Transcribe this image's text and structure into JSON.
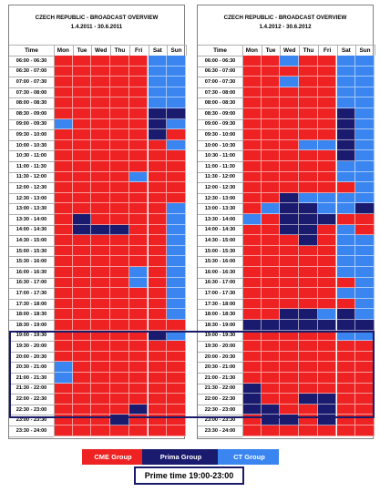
{
  "colors": {
    "cme": "#ee2222",
    "prima": "#1a1a6e",
    "ct": "#3a85f0"
  },
  "panels": [
    {
      "title": "CZECH REPUBLIC - BROADCAST OVERVIEW",
      "subtitle": "1.4.2011 - 30.6.2011"
    },
    {
      "title": "CZECH REPUBLIC - BROADCAST OVERVIEW",
      "subtitle": "1.4.2012 - 30.6.2012"
    }
  ],
  "legend": [
    {
      "label": "CME Group",
      "group": "cme"
    },
    {
      "label": "Prima Group",
      "group": "prima"
    },
    {
      "label": "CT Group",
      "group": "ct"
    }
  ],
  "prime_time_label": "Prime time 19:00-23:00",
  "chart_data": [
    {
      "type": "heatmap",
      "title": "CZECH REPUBLIC - BROADCAST OVERVIEW",
      "subtitle": "1.4.2011 - 30.6.2011",
      "legend": [
        "CME Group",
        "Prima Group",
        "CT Group"
      ],
      "encoding": {
        "C": "CME Group",
        "P": "Prima Group",
        "T": "CT Group"
      },
      "x_header": "Time",
      "days": [
        "Mon",
        "Tue",
        "Wed",
        "Thu",
        "Fri",
        "Sat",
        "Sun"
      ],
      "time_slots": [
        "06:00 - 06:30",
        "06:30 - 07:00",
        "07:00 - 07:30",
        "07:30 - 08:00",
        "08:00 - 08:30",
        "08:30 - 09:00",
        "09:00 - 09:30",
        "09:30 - 10:00",
        "10:00 - 10:30",
        "10:30 - 11:00",
        "11:00 - 11:30",
        "11:30 - 12:00",
        "12:00 - 12:30",
        "12:30 - 13:00",
        "13:00 - 13:30",
        "13:30 - 14:00",
        "14:00 - 14:30",
        "14:30 - 15:00",
        "15:00 - 15:30",
        "15:30 - 16:00",
        "16:00 - 16:30",
        "16:30 - 17:00",
        "17:00 - 17:30",
        "17:30 - 18:00",
        "18:00 - 18:30",
        "18:30 - 19:00",
        "19:00 - 19:30",
        "19:30 - 20:00",
        "20:00 - 20:30",
        "20:30 - 21:00",
        "21:00 - 21:30",
        "21:30 - 22:00",
        "22:00 - 22:30",
        "22:30 - 23:00",
        "23:00 - 23:30",
        "23:30 - 24:00"
      ],
      "rows": [
        "CCCCCTT",
        "CCCCCTT",
        "CCCCCTT",
        "CCCCCTT",
        "CCCCCTT",
        "CCCCCPP",
        "TCCCCPT",
        "CCCCCPC",
        "CCCCCCT",
        "CCCCCCC",
        "CCCCCCC",
        "CCCCTCC",
        "CCCCCCC",
        "CCCCCCC",
        "CCCCCCT",
        "CPCCCCT",
        "CPPPCCT",
        "CCCCCCT",
        "CCCCCCT",
        "CCCCCCT",
        "CCCCTCT",
        "CCCCTCT",
        "CCCCCCT",
        "CCCCCCT",
        "CCCCCCT",
        "CCCCCCC",
        "CCCCCPT",
        "CCCCCCC",
        "CCCCCCC",
        "TCCCCCC",
        "TCCCCCC",
        "CCCCCCC",
        "CCCCCCC",
        "CCCCPCC",
        "CCCPCCC",
        "CCCCCCC"
      ]
    },
    {
      "type": "heatmap",
      "title": "CZECH REPUBLIC - BROADCAST OVERVIEW",
      "subtitle": "1.4.2012 - 30.6.2012",
      "legend": [
        "CME Group",
        "Prima Group",
        "CT Group"
      ],
      "encoding": {
        "C": "CME Group",
        "P": "Prima Group",
        "T": "CT Group"
      },
      "x_header": "Time",
      "days": [
        "Mon",
        "Tue",
        "Wed",
        "Thu",
        "Fri",
        "Sat",
        "Sun"
      ],
      "time_slots": [
        "06:00 - 06:30",
        "06:30 - 07:00",
        "07:00 - 07:30",
        "07:30 - 08:00",
        "08:00 - 08:30",
        "08:30 - 09:00",
        "09:00 - 09:30",
        "09:30 - 10:00",
        "10:00 - 10:30",
        "10:30 - 11:00",
        "11:00 - 11:30",
        "11:30 - 12:00",
        "12:00 - 12:30",
        "12:30 - 13:00",
        "13:00 - 13:30",
        "13:30 - 14:00",
        "14:00 - 14:30",
        "14:30 - 15:00",
        "15:00 - 15:30",
        "15:30 - 16:00",
        "16:00 - 16:30",
        "16:30 - 17:00",
        "17:00 - 17:30",
        "17:30 - 18:00",
        "18:00 - 18:30",
        "18:30 - 19:00",
        "19:00 - 19:30",
        "19:30 - 20:00",
        "20:00 - 20:30",
        "20:30 - 21:00",
        "21:00 - 21:30",
        "21:30 - 22:00",
        "22:00 - 22:30",
        "22:30 - 23:00",
        "23:00 - 23:30",
        "23:30 - 24:00"
      ],
      "rows": [
        "CCTCCTT",
        "CCCCCTT",
        "CCTCCTT",
        "CCCCCTT",
        "CCCCCTT",
        "CCCCCPT",
        "CCCCCPT",
        "CCCCCPT",
        "CCCTTPT",
        "CCCCCPT",
        "CCCCCTT",
        "CCCCCTT",
        "CCCCCCT",
        "CCPTTTT",
        "CTPPTTP",
        "TCPPPCC",
        "CCPPCTC",
        "CCCPCTT",
        "CCCCCTT",
        "CCCCCTT",
        "CCCCCTT",
        "CCCCCCT",
        "CCCCCTT",
        "CCCCCCT",
        "CCPPTPT",
        "PPPPPPP",
        "CCCCCTT",
        "CCCCCCC",
        "CCCCCCC",
        "CCCCCCC",
        "CCCCCCC",
        "PCCCCCC",
        "PCCPPCC",
        "PPCCPCC",
        "CPPCPCC",
        "CCCCCCC"
      ]
    }
  ]
}
